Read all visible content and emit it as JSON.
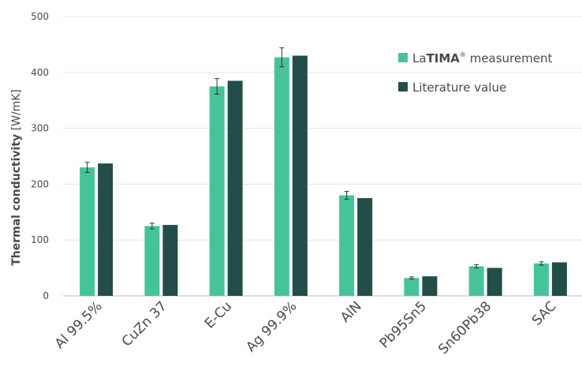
{
  "chart_data": {
    "type": "bar",
    "title": "",
    "ylabel_bold": "Thermal conductivity",
    "ylabel_unit": "[W/mK]",
    "ylim": [
      0,
      500
    ],
    "yticks": [
      "0",
      "100",
      "200",
      "300",
      "400",
      "500"
    ],
    "grid": true,
    "legend_placement": "top-right",
    "categories": [
      "Al 99.5%",
      "CuZn 37",
      "E-Cu",
      "Ag 99.9%",
      "AlN",
      "Pb95Sn5",
      "Sn60Pb38",
      "SAC"
    ],
    "series": [
      {
        "name": "LaTIMA® measurement",
        "legend_prefix": "La",
        "legend_bold": "TIMA",
        "legend_sup": "®",
        "legend_suffix": " measurement",
        "color": "#45c49a",
        "values": [
          230,
          125,
          375,
          427,
          180,
          32,
          53,
          58
        ],
        "errors": [
          9,
          5,
          14,
          17,
          7,
          2,
          3,
          3
        ]
      },
      {
        "name": "Literature value",
        "color": "#234d48",
        "values": [
          237,
          127,
          385,
          430,
          175,
          35,
          50,
          60
        ]
      }
    ],
    "colors": {
      "grid": "#e3e3e3",
      "axis": "#bdbdbd",
      "text": "#4a4a4a",
      "error": "#333333"
    }
  }
}
